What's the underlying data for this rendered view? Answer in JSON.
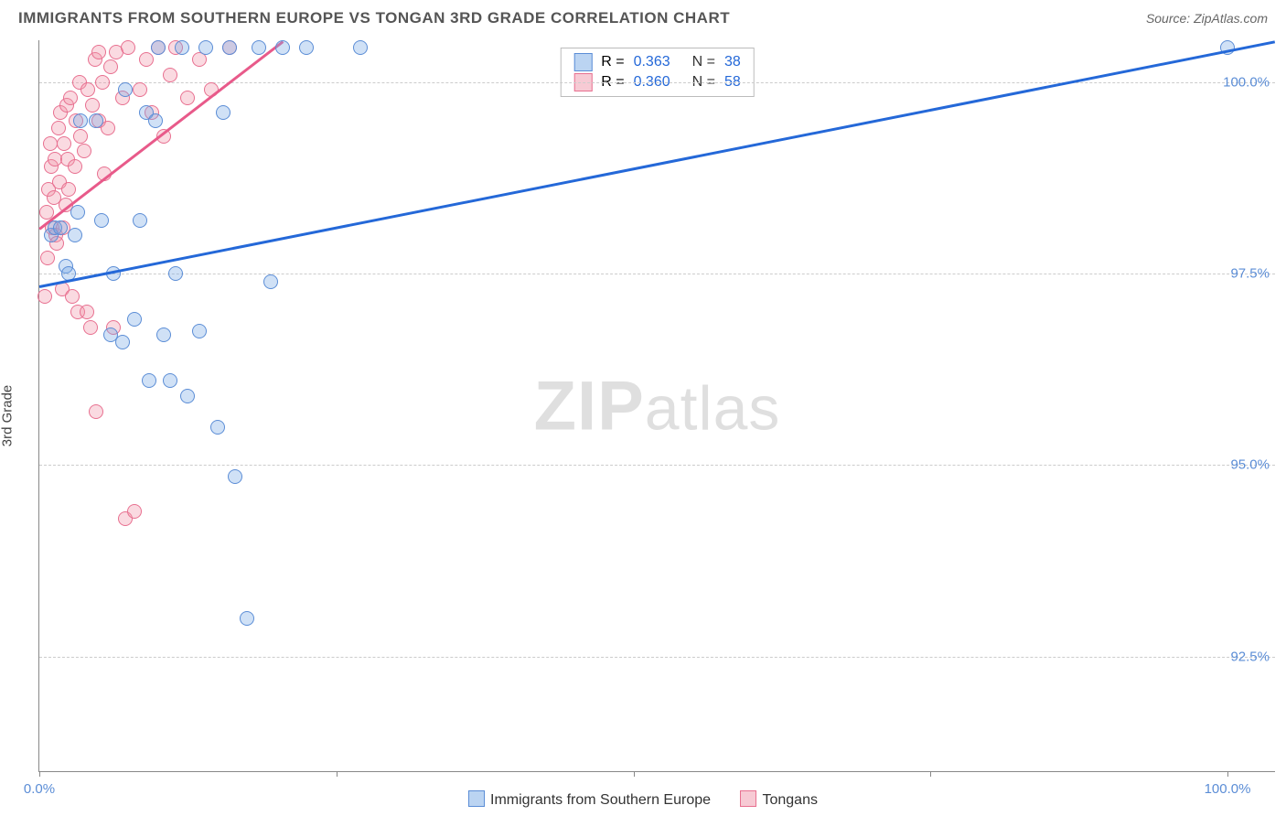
{
  "header": {
    "title": "IMMIGRANTS FROM SOUTHERN EUROPE VS TONGAN 3RD GRADE CORRELATION CHART",
    "source": "Source: ZipAtlas.com"
  },
  "axes": {
    "ylabel": "3rd Grade",
    "ylim": [
      91.0,
      100.55
    ],
    "yticks": [
      92.5,
      95.0,
      97.5,
      100.0
    ],
    "ytick_labels": [
      "92.5%",
      "95.0%",
      "97.5%",
      "100.0%"
    ],
    "xlim": [
      0.0,
      104.0
    ],
    "xticks": [
      0,
      25,
      50,
      75,
      100
    ],
    "xtick_labels_shown": {
      "0": "0.0%",
      "100": "100.0%"
    },
    "grid_color": "#cccccc",
    "axis_color": "#888888",
    "tick_label_color": "#5b8dd6",
    "label_fontsize": 15
  },
  "series": {
    "blue": {
      "label": "Immigrants from Southern Europe",
      "marker_color_fill": "rgba(120,170,230,0.35)",
      "marker_color_stroke": "#5b8dd6",
      "line_color": "#2468d8",
      "R": "0.363",
      "N": "38",
      "trend": {
        "x0": 0,
        "y0": 97.35,
        "x1": 104,
        "y1": 100.55
      },
      "points": [
        [
          1.0,
          98.0
        ],
        [
          1.3,
          98.1
        ],
        [
          1.8,
          98.1
        ],
        [
          2.2,
          97.6
        ],
        [
          2.5,
          97.5
        ],
        [
          3.0,
          98.0
        ],
        [
          3.2,
          98.3
        ],
        [
          3.5,
          99.5
        ],
        [
          4.8,
          99.5
        ],
        [
          5.2,
          98.2
        ],
        [
          6.0,
          96.7
        ],
        [
          6.2,
          97.5
        ],
        [
          7.0,
          96.6
        ],
        [
          7.2,
          99.9
        ],
        [
          8.0,
          96.9
        ],
        [
          8.5,
          98.2
        ],
        [
          9.0,
          99.6
        ],
        [
          9.2,
          96.1
        ],
        [
          9.8,
          99.5
        ],
        [
          10.0,
          100.45
        ],
        [
          10.5,
          96.7
        ],
        [
          11.0,
          96.1
        ],
        [
          11.5,
          97.5
        ],
        [
          12.0,
          100.45
        ],
        [
          12.5,
          95.9
        ],
        [
          13.5,
          96.75
        ],
        [
          14.0,
          100.45
        ],
        [
          15.0,
          95.5
        ],
        [
          15.5,
          99.6
        ],
        [
          16.0,
          100.45
        ],
        [
          16.5,
          94.85
        ],
        [
          17.5,
          93.0
        ],
        [
          18.5,
          100.45
        ],
        [
          19.5,
          97.4
        ],
        [
          20.5,
          100.45
        ],
        [
          22.5,
          100.45
        ],
        [
          27.0,
          100.45
        ],
        [
          100.0,
          100.45
        ]
      ]
    },
    "pink": {
      "label": "Tongans",
      "marker_color_fill": "rgba(240,150,170,0.35)",
      "marker_color_stroke": "#e87090",
      "line_color": "#e85a8a",
      "R": "0.360",
      "N": "58",
      "trend": {
        "x0": 0,
        "y0": 98.1,
        "x1": 20.5,
        "y1": 100.55
      },
      "points": [
        [
          0.5,
          97.2
        ],
        [
          0.6,
          98.3
        ],
        [
          0.7,
          97.7
        ],
        [
          0.8,
          98.6
        ],
        [
          0.9,
          99.2
        ],
        [
          1.0,
          98.9
        ],
        [
          1.1,
          98.1
        ],
        [
          1.2,
          98.5
        ],
        [
          1.3,
          99.0
        ],
        [
          1.4,
          98.0
        ],
        [
          1.5,
          97.9
        ],
        [
          1.6,
          99.4
        ],
        [
          1.7,
          98.7
        ],
        [
          1.8,
          99.6
        ],
        [
          1.9,
          97.3
        ],
        [
          2.0,
          98.1
        ],
        [
          2.1,
          99.2
        ],
        [
          2.2,
          98.4
        ],
        [
          2.3,
          99.7
        ],
        [
          2.4,
          99.0
        ],
        [
          2.5,
          98.6
        ],
        [
          2.6,
          99.8
        ],
        [
          2.8,
          97.2
        ],
        [
          3.0,
          98.9
        ],
        [
          3.1,
          99.5
        ],
        [
          3.2,
          97.0
        ],
        [
          3.4,
          100.0
        ],
        [
          3.5,
          99.3
        ],
        [
          3.8,
          99.1
        ],
        [
          4.0,
          97.0
        ],
        [
          4.1,
          99.9
        ],
        [
          4.3,
          96.8
        ],
        [
          4.5,
          99.7
        ],
        [
          4.7,
          100.3
        ],
        [
          4.8,
          95.7
        ],
        [
          5.0,
          99.5
        ],
        [
          5.0,
          100.4
        ],
        [
          5.3,
          100.0
        ],
        [
          5.5,
          98.8
        ],
        [
          5.8,
          99.4
        ],
        [
          6.0,
          100.2
        ],
        [
          6.2,
          96.8
        ],
        [
          6.5,
          100.4
        ],
        [
          7.0,
          99.8
        ],
        [
          7.2,
          94.3
        ],
        [
          7.5,
          100.45
        ],
        [
          8.0,
          94.4
        ],
        [
          8.5,
          99.9
        ],
        [
          9.0,
          100.3
        ],
        [
          9.5,
          99.6
        ],
        [
          10.0,
          100.45
        ],
        [
          10.5,
          99.3
        ],
        [
          11.0,
          100.1
        ],
        [
          11.5,
          100.45
        ],
        [
          12.5,
          99.8
        ],
        [
          13.5,
          100.3
        ],
        [
          14.5,
          99.9
        ],
        [
          16.0,
          100.45
        ]
      ]
    }
  },
  "legend": {
    "top": {
      "R_label": "R =",
      "N_label": "N ="
    },
    "bottom": {
      "s1": "Immigrants from Southern Europe",
      "s2": "Tongans"
    }
  },
  "watermark": {
    "bold": "ZIP",
    "rest": "atlas"
  }
}
